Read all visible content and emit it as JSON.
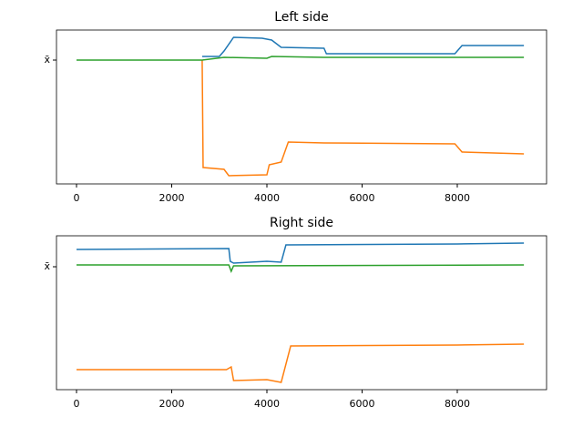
{
  "chart_data": [
    {
      "type": "line",
      "title": "Left side",
      "xlim": [
        -421,
        9876
      ],
      "xticks": [
        0,
        2000,
        4000,
        6000,
        8000
      ],
      "ylim": [
        -136,
        33
      ],
      "yticks": [
        {
          "value": 0,
          "label": "x̄"
        }
      ],
      "series": [
        {
          "color": "#1f77b4",
          "x": [
            2640,
            3000,
            3100,
            3300,
            3900,
            4100,
            4300,
            5200,
            5250,
            7950,
            8100,
            9400
          ],
          "values": [
            4,
            4,
            10,
            25,
            24,
            22,
            14,
            13,
            7,
            7,
            16,
            16
          ]
        },
        {
          "color": "#ff7f0e",
          "x": [
            2640,
            2660,
            3100,
            3200,
            4000,
            4050,
            4300,
            4450,
            5200,
            7950,
            8100,
            9400
          ],
          "values": [
            0,
            -118,
            -120,
            -127,
            -126,
            -115,
            -112,
            -90,
            -91,
            -92,
            -101,
            -103
          ]
        },
        {
          "color": "#2ca02c",
          "x": [
            0,
            2640,
            3100,
            4000,
            4100,
            5200,
            9400
          ],
          "values": [
            0,
            0,
            3,
            2,
            4,
            3,
            3
          ]
        }
      ]
    },
    {
      "type": "line",
      "title": "Right side",
      "xlim": [
        -421,
        9876
      ],
      "xticks": [
        0,
        2000,
        4000,
        6000,
        8000
      ],
      "ylim": [
        -135,
        34
      ],
      "yticks": [
        {
          "value": 0,
          "label": "x̄"
        }
      ],
      "series": [
        {
          "color": "#1f77b4",
          "x": [
            0,
            3200,
            3230,
            3300,
            4000,
            4300,
            4400,
            8000,
            9400
          ],
          "values": [
            19,
            20,
            6,
            4,
            6,
            5,
            24,
            25,
            26
          ]
        },
        {
          "color": "#ff7f0e",
          "x": [
            0,
            3150,
            3250,
            3300,
            4000,
            4300,
            4500,
            8000,
            9400
          ],
          "values": [
            -113,
            -113,
            -110,
            -125,
            -124,
            -127,
            -87,
            -86,
            -85
          ]
        },
        {
          "color": "#2ca02c",
          "x": [
            0,
            3200,
            3250,
            3300,
            9400
          ],
          "values": [
            2,
            2,
            -5,
            1,
            2
          ]
        }
      ]
    }
  ]
}
